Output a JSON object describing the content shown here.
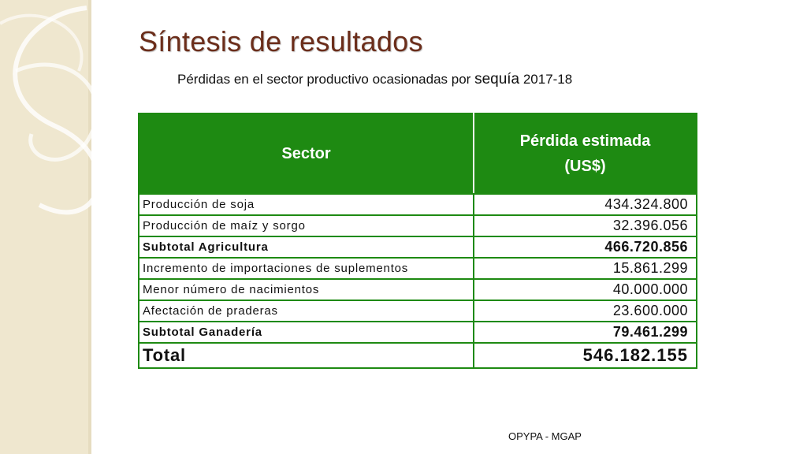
{
  "slide": {
    "title": "Síntesis de resultados",
    "subtitle_main": "Pérdidas en el sector productivo ocasionadas por ",
    "subtitle_emph": "sequía",
    "subtitle_end": " 2017-18",
    "footer": "OPYPA - MGAP"
  },
  "table": {
    "col_sector": "Sector",
    "col_loss_line1": "Pérdida estimada",
    "col_loss_line2": "(US$)",
    "rows": [
      {
        "sector": "Producción de soja",
        "value": "434.324.800",
        "bold": false
      },
      {
        "sector": "Producción de maíz y sorgo",
        "value": "32.396.056",
        "bold": false
      },
      {
        "sector": "Subtotal Agricultura",
        "value": "466.720.856",
        "bold": true
      },
      {
        "sector": "Incremento de importaciones de suplementos",
        "value": "15.861.299",
        "bold": false
      },
      {
        "sector": "Menor número de nacimientos",
        "value": "40.000.000",
        "bold": false
      },
      {
        "sector": "Afectación de praderas",
        "value": "23.600.000",
        "bold": false
      },
      {
        "sector": "Subtotal Ganadería",
        "value": "79.461.299",
        "bold": true
      }
    ],
    "total_label": "Total",
    "total_value": "546.182.155"
  },
  "colors": {
    "header_green": "#1e8a12",
    "title_brown": "#6b2d1a",
    "band_beige": "#efe7cf"
  }
}
